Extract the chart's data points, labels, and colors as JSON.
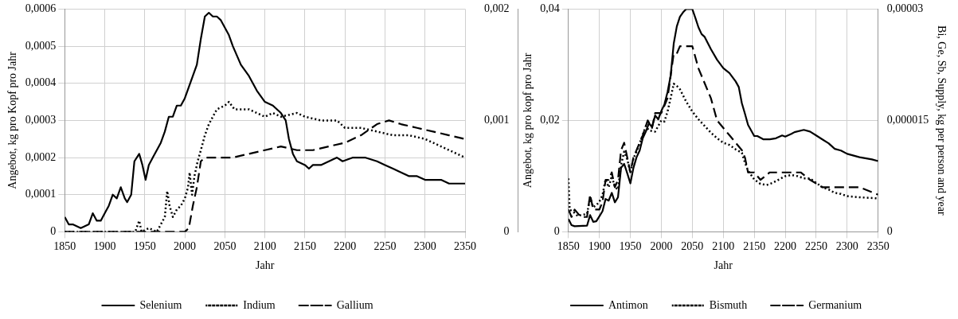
{
  "chart_data": [
    {
      "type": "line",
      "xlabel": "Jahr",
      "ylabel": "Angebot, kg pro Kopf pro Jahr",
      "xlim": [
        1850,
        2350
      ],
      "xticks": [
        1850,
        1900,
        1950,
        2000,
        2050,
        2100,
        2150,
        2200,
        2250,
        2300,
        2350
      ],
      "ylim": [
        0,
        0.0006
      ],
      "yticks": [
        {
          "value": 0,
          "label": "0"
        },
        {
          "value": 0.0001,
          "label": "0,0001"
        },
        {
          "value": 0.0002,
          "label": "0,0002"
        },
        {
          "value": 0.0003,
          "label": "0,0003"
        },
        {
          "value": 0.0004,
          "label": "0,0004"
        },
        {
          "value": 0.0005,
          "label": "0,0005"
        },
        {
          "value": 0.0006,
          "label": "0,0006"
        }
      ],
      "grid": true,
      "legend": "bottom",
      "marker": "none",
      "series": [
        {
          "name": "Selenium",
          "color": "#000000",
          "line_style": "solid",
          "x": [
            1850,
            1855,
            1860,
            1870,
            1880,
            1885,
            1890,
            1895,
            1900,
            1905,
            1910,
            1915,
            1920,
            1925,
            1928,
            1933,
            1937,
            1943,
            1947,
            1951,
            1955,
            1960,
            1965,
            1970,
            1975,
            1980,
            1985,
            1990,
            1995,
            2000,
            2010,
            2015,
            2020,
            2025,
            2030,
            2035,
            2040,
            2045,
            2050,
            2055,
            2060,
            2070,
            2080,
            2090,
            2100,
            2110,
            2120,
            2126,
            2130,
            2135,
            2140,
            2150,
            2155,
            2160,
            2170,
            2180,
            2190,
            2197,
            2210,
            2220,
            2225,
            2240,
            2250,
            2260,
            2270,
            2280,
            2290,
            2300,
            2320,
            2330,
            2350
          ],
          "values": [
            4e-05,
            2e-05,
            2e-05,
            1e-05,
            2e-05,
            5e-05,
            3e-05,
            3e-05,
            5e-05,
            7e-05,
            0.0001,
            9e-05,
            0.00012,
            9e-05,
            8e-05,
            0.0001,
            0.00019,
            0.00021,
            0.00018,
            0.00014,
            0.00018,
            0.0002,
            0.00022,
            0.00024,
            0.00027,
            0.00031,
            0.00031,
            0.00034,
            0.00034,
            0.00036,
            0.00042,
            0.00045,
            0.00052,
            0.00058,
            0.00059,
            0.00058,
            0.00058,
            0.00057,
            0.00055,
            0.00053,
            0.0005,
            0.00045,
            0.00042,
            0.00038,
            0.00035,
            0.00034,
            0.00032,
            0.0003,
            0.00025,
            0.00021,
            0.00019,
            0.00018,
            0.00017,
            0.00018,
            0.00018,
            0.00019,
            0.0002,
            0.00019,
            0.0002,
            0.0002,
            0.0002,
            0.00019,
            0.00018,
            0.00017,
            0.00016,
            0.00015,
            0.00015,
            0.00014,
            0.00014,
            0.00013,
            0.00013
          ]
        },
        {
          "name": "Indium",
          "color": "#000000",
          "line_style": "dotted",
          "x": [
            1850,
            1900,
            1938,
            1943,
            1946,
            1955,
            1965,
            1970,
            1975,
            1978,
            1981,
            1985,
            1990,
            1995,
            2000,
            2004,
            2006,
            2009,
            2012,
            2016,
            2020,
            2025,
            2030,
            2040,
            2050,
            2055,
            2062,
            2070,
            2080,
            2090,
            2100,
            2110,
            2120,
            2140,
            2150,
            2170,
            2190,
            2200,
            2220,
            2240,
            2260,
            2280,
            2300,
            2320,
            2340,
            2350
          ],
          "values": [
            0,
            0,
            0,
            3e-05,
            0,
            1e-05,
            0,
            2e-05,
            4e-05,
            0.00011,
            7e-05,
            4e-05,
            6e-05,
            7e-05,
            9e-05,
            0.00012,
            0.00016,
            0.0001,
            0.00015,
            0.00019,
            0.00022,
            0.00026,
            0.00029,
            0.00033,
            0.00034,
            0.00035,
            0.00033,
            0.00033,
            0.00033,
            0.00032,
            0.00031,
            0.00032,
            0.00031,
            0.00032,
            0.00031,
            0.0003,
            0.0003,
            0.00028,
            0.00028,
            0.00027,
            0.00026,
            0.00026,
            0.00025,
            0.00023,
            0.00021,
            0.0002
          ]
        },
        {
          "name": "Gallium",
          "color": "#000000",
          "line_style": "dashed",
          "x": [
            1850,
            1950,
            1995,
            2000,
            2005,
            2010,
            2015,
            2020,
            2025,
            2040,
            2060,
            2080,
            2100,
            2120,
            2140,
            2160,
            2180,
            2200,
            2220,
            2240,
            2255,
            2270,
            2290,
            2310,
            2330,
            2350
          ],
          "values": [
            0,
            0,
            0,
            0,
            1e-05,
            7e-05,
            0.00012,
            0.00019,
            0.0002,
            0.0002,
            0.0002,
            0.00021,
            0.00022,
            0.00023,
            0.00022,
            0.00022,
            0.00023,
            0.00024,
            0.00026,
            0.00029,
            0.0003,
            0.00029,
            0.00028,
            0.00027,
            0.00026,
            0.00025
          ]
        }
      ]
    },
    {
      "type": "line",
      "xlabel": "Jahr",
      "ylabel": "Angebot, kg pro kopf pro Jahr",
      "y2label": "Bi, Ge, Sb, Supply, kg per person and year",
      "xlim": [
        1850,
        2350
      ],
      "xticks": [
        1850,
        1900,
        1950,
        2000,
        2050,
        2100,
        2150,
        2200,
        2250,
        2300,
        2350
      ],
      "ylim": [
        0,
        0.04
      ],
      "yticks": [
        {
          "value": 0,
          "label": "0"
        },
        {
          "value": 0.02,
          "label": "0,02"
        },
        {
          "value": 0.04,
          "label": "0,04"
        }
      ],
      "y3lim": [
        0,
        0.002
      ],
      "y3ticks": [
        {
          "value": 0,
          "label": "0"
        },
        {
          "value": 0.001,
          "label": "0,001"
        },
        {
          "value": 0.002,
          "label": "0,002"
        }
      ],
      "y2lim": [
        0,
        3e-05
      ],
      "y2ticks": [
        {
          "value": 0,
          "label": "0"
        },
        {
          "value": 1.5e-05,
          "label": "0,000015"
        },
        {
          "value": 3e-05,
          "label": "0,00003"
        }
      ],
      "grid": true,
      "legend": "bottom",
      "marker": "none",
      "series": [
        {
          "name": "Antimon",
          "color": "#000000",
          "line_style": "solid",
          "axis": "y",
          "x": [
            1850,
            1855,
            1860,
            1880,
            1885,
            1890,
            1895,
            1900,
            1905,
            1910,
            1915,
            1920,
            1925,
            1930,
            1935,
            1940,
            1945,
            1950,
            1955,
            1960,
            1965,
            1970,
            1975,
            1980,
            1985,
            1990,
            1995,
            2000,
            2005,
            2010,
            2015,
            2020,
            2025,
            2030,
            2035,
            2040,
            2045,
            2050,
            2055,
            2060,
            2065,
            2070,
            2080,
            2090,
            2100,
            2110,
            2120,
            2125,
            2130,
            2135,
            2140,
            2150,
            2155,
            2165,
            2175,
            2185,
            2195,
            2200,
            2210,
            2215,
            2230,
            2240,
            2250,
            2260,
            2270,
            2280,
            2290,
            2300,
            2320,
            2340,
            2350
          ],
          "values": [
            0.0023,
            0.0012,
            0.001,
            0.0011,
            0.003,
            0.0018,
            0.0019,
            0.0028,
            0.0037,
            0.0059,
            0.0056,
            0.007,
            0.0053,
            0.0062,
            0.0115,
            0.0122,
            0.0105,
            0.0087,
            0.0115,
            0.0134,
            0.0146,
            0.0168,
            0.018,
            0.0195,
            0.0188,
            0.0209,
            0.0202,
            0.0217,
            0.0229,
            0.0251,
            0.028,
            0.0338,
            0.0369,
            0.0386,
            0.0394,
            0.04,
            0.04,
            0.04,
            0.0384,
            0.0367,
            0.0355,
            0.035,
            0.0328,
            0.0309,
            0.0294,
            0.0285,
            0.027,
            0.026,
            0.0231,
            0.0212,
            0.0192,
            0.0172,
            0.0172,
            0.0166,
            0.0166,
            0.0168,
            0.0173,
            0.0171,
            0.0176,
            0.0179,
            0.0183,
            0.018,
            0.0173,
            0.0166,
            0.0159,
            0.0149,
            0.0146,
            0.014,
            0.0134,
            0.013,
            0.0127
          ]
        },
        {
          "name": "Bismuth",
          "color": "#000000",
          "line_style": "dotted",
          "axis": "y3",
          "x": [
            1850,
            1852,
            1860,
            1865,
            1870,
            1880,
            1885,
            1890,
            1895,
            1900,
            1905,
            1910,
            1915,
            1920,
            1925,
            1930,
            1935,
            1940,
            1945,
            1950,
            1955,
            1960,
            1970,
            1975,
            1980,
            1990,
            2000,
            2005,
            2010,
            2015,
            2020,
            2025,
            2030,
            2040,
            2050,
            2060,
            2070,
            2080,
            2090,
            2100,
            2110,
            2120,
            2130,
            2135,
            2140,
            2150,
            2160,
            2170,
            2180,
            2190,
            2200,
            2210,
            2220,
            2230,
            2240,
            2250,
            2260,
            2270,
            2280,
            2290,
            2300,
            2320,
            2350
          ],
          "values": [
            0.00048,
            0.0002,
            0.00017,
            0.00014,
            0.00015,
            0.00016,
            0.00031,
            0.00022,
            0.00024,
            0.00027,
            0.00033,
            0.00047,
            0.0004,
            0.0005,
            0.0004,
            0.00038,
            0.0006,
            0.00072,
            0.00065,
            0.00053,
            0.00066,
            0.00072,
            0.00087,
            0.00095,
            0.00091,
            0.0009,
            0.001,
            0.00099,
            0.00108,
            0.0012,
            0.00133,
            0.00131,
            0.00128,
            0.00117,
            0.00108,
            0.00101,
            0.00095,
            0.00089,
            0.00084,
            0.0008,
            0.00078,
            0.00074,
            0.00071,
            0.00062,
            0.00055,
            0.00047,
            0.00043,
            0.00042,
            0.00044,
            0.00047,
            0.0005,
            0.00051,
            0.0005,
            0.00048,
            0.00048,
            0.00044,
            0.0004,
            0.00038,
            0.00035,
            0.00034,
            0.00032,
            0.00031,
            0.0003
          ]
        },
        {
          "name": "Germanium",
          "color": "#000000",
          "line_style": "dashed",
          "axis": "y2",
          "x": [
            1850,
            1855,
            1860,
            1870,
            1880,
            1885,
            1890,
            1900,
            1905,
            1910,
            1915,
            1920,
            1925,
            1930,
            1935,
            1940,
            1945,
            1950,
            1955,
            1960,
            1970,
            1978,
            1985,
            1990,
            2000,
            2005,
            2010,
            2015,
            2020,
            2025,
            2030,
            2040,
            2050,
            2060,
            2070,
            2080,
            2090,
            2100,
            2110,
            2120,
            2130,
            2135,
            2140,
            2150,
            2160,
            2175,
            2190,
            2200,
            2210,
            2225,
            2240,
            2260,
            2270,
            2290,
            2300,
            2320,
            2350
          ],
          "values": [
            3e-06,
            2e-06,
            3e-06,
            2e-06,
            2e-06,
            5e-06,
            3e-06,
            3e-06,
            4e-06,
            7e-06,
            7e-06,
            8e-06,
            6e-06,
            7e-06,
            1.1e-05,
            1.2e-05,
            1e-05,
            8e-06,
            1e-05,
            1.1e-05,
            1.3e-05,
            1.5e-05,
            1.4e-05,
            1.6e-05,
            1.6e-05,
            1.7e-05,
            1.8e-05,
            2.1e-05,
            2.4e-05,
            2.4e-05,
            2.5e-05,
            2.5e-05,
            2.5e-05,
            2.2e-05,
            2e-05,
            1.8e-05,
            1.5e-05,
            1.4e-05,
            1.3e-05,
            1.2e-05,
            1.1e-05,
            1e-05,
            8e-06,
            8e-06,
            7e-06,
            8e-06,
            8e-06,
            8e-06,
            8e-06,
            8e-06,
            7e-06,
            6e-06,
            6e-06,
            6e-06,
            6e-06,
            6e-06,
            5e-06
          ]
        }
      ]
    }
  ]
}
